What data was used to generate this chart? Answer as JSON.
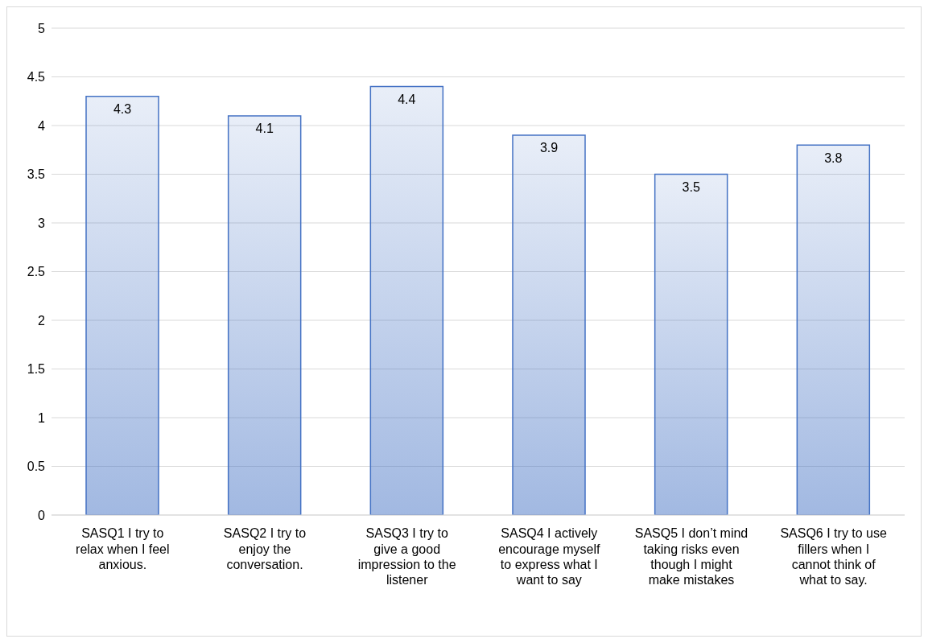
{
  "chart_data": {
    "type": "bar",
    "categories": [
      "SASQ1 I try to relax when I feel anxious.",
      "SASQ2 I try to enjoy the conversation.",
      "SASQ3 I try to give a good impression to the listener",
      "SASQ4 I actively encourage myself to express what I want to say",
      "SASQ5 I don’t mind taking risks even though I might make mistakes",
      "SASQ6 I try to use fillers when I cannot think of what to say."
    ],
    "values": [
      4.3,
      4.1,
      4.4,
      3.9,
      3.5,
      3.8
    ],
    "color": "#4472c4",
    "ylim": [
      0,
      5
    ],
    "yticks": [
      0,
      0.5,
      1,
      1.5,
      2,
      2.5,
      3,
      3.5,
      4,
      4.5,
      5
    ],
    "grid": "y",
    "data_labels": true,
    "legend": false
  }
}
